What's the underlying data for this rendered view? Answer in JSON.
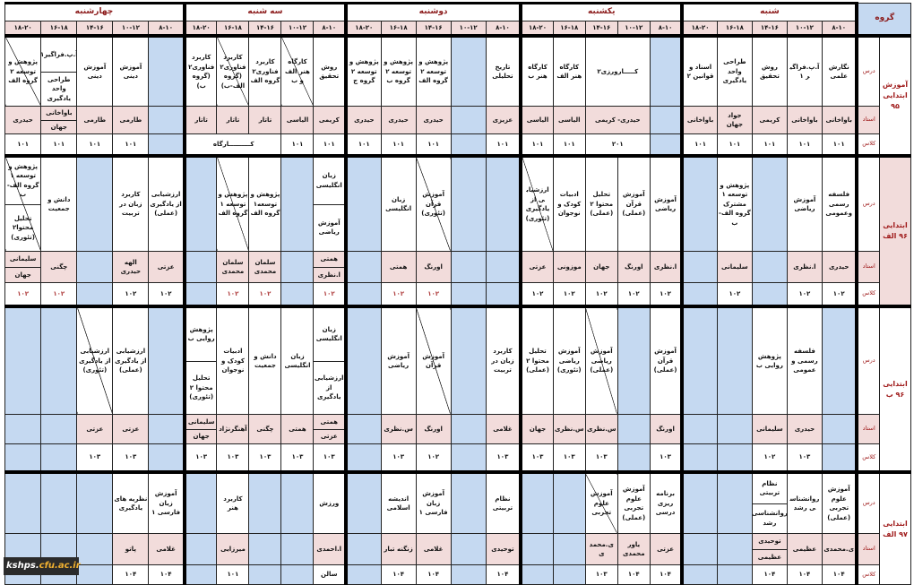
{
  "header": {
    "group_label": "گروه",
    "days": [
      "شنبه",
      "یکشنبه",
      "دوشنبه",
      "سه شنبه",
      "چهارشنبه"
    ],
    "times": [
      "۸-۱۰",
      "۱۰-۱۲",
      "۱۴-۱۶",
      "۱۶-۱۸",
      "۱۸-۲۰"
    ]
  },
  "row_labels": {
    "course": "درس",
    "teacher": "استاد",
    "room": "کلاس"
  },
  "colors": {
    "empty": "#c5d9f1",
    "teacher_bg": "#f2dcdb",
    "label_red": "#a01c1c"
  },
  "groups": [
    {
      "label": "آموزش ابتدایی ۹۵",
      "days": [
        {
          "slots": [
            {
              "c": "نگارش علمی",
              "t": "باواخانی",
              "r": "۱۰۱"
            },
            {
              "c": "آ.پ.فراگیر ۱",
              "t": "باواخانی",
              "r": "۱۰۱"
            },
            {
              "c": "روش تحقیق",
              "t": "کریمی",
              "r": "۱۰۱"
            },
            {
              "c": "طراحی واحد یادگیری",
              "t": "جواد جهان",
              "r": "۱۰۱"
            },
            {
              "c": "اسناد و قوانین ۲",
              "t": "باواخانی",
              "r": "۱۰۱"
            }
          ]
        },
        {
          "slots": [
            {
              "empty": true
            },
            {
              "c": "کـــــارورزی۲",
              "t": "حیدری- کریمی",
              "r": "۲۰۱",
              "span": 2
            },
            {
              "c": "کارگاه هنر الف",
              "t": "الیاسی",
              "r": "۱۰۱"
            },
            {
              "c": "کارگاه هنر ب",
              "t": "الیاسی",
              "r": "۱۰۱"
            }
          ]
        },
        {
          "slots": [
            {
              "c": "تاریخ تحلیلی",
              "t": "عزیزی",
              "r": "۱۰۱"
            },
            {
              "empty": true
            },
            {
              "c": "پژوهش و توسعه ۲ گروه الف",
              "t": "حیدری",
              "r": "۱۰۱"
            },
            {
              "c": "پژوهش و توسعه ۲ گروه ب",
              "t": "حیدری",
              "r": "۱۰۱"
            },
            {
              "c": "پژوهش و توسعه ۲ گروه ج",
              "t": "حیدری",
              "r": "۱۰۱"
            }
          ]
        },
        {
          "slots": [
            {
              "c": "روش تحقیق",
              "t": "کریمی",
              "r": "۱۰۱"
            },
            {
              "c": "کارگاه هنر الف و ب",
              "t": "الیاسی",
              "r": "۱۰۱",
              "diag": true
            },
            {
              "c": "کاربرد فناوری۲ گروه الف",
              "t": "تاتار",
              "r": "کــــــــــارگاه",
              "rspan": 3
            },
            {
              "c": "کاربرد فناوری۲ (گروه الف-ب)",
              "t": "تاتار",
              "diag": true,
              "rskip": true
            },
            {
              "c": "کاربرد فناوری۲ (گروه ب)",
              "t": "تاتار",
              "rskip": true
            }
          ]
        },
        {
          "slots": [
            {
              "empty": true
            },
            {
              "c": "آموزش دینی",
              "t": "طارمی",
              "r": "۱۰۱"
            },
            {
              "c": "آموزش دینی",
              "t": "طارمی",
              "r": "۱۰۱"
            },
            {
              "c": "آ.پ.فراگیر۱",
              "c2": "طراحی واحد یادگیری",
              "t": "باواخانی",
              "t2": "جهان",
              "r": "۱۰۱"
            },
            {
              "c": "پژوهش و توسعه ۲ گروه الف",
              "t": "حیدری",
              "r": "۱۰۱",
              "diag": true
            }
          ]
        }
      ]
    },
    {
      "label": "ابتدایی ۹۶ الف",
      "days": [
        {
          "slots": [
            {
              "c": "فلسفه رسمی وعمومی",
              "t": "حیدری",
              "r": "۱۰۲"
            },
            {
              "c": "آموزش ریاضی",
              "t": "ا.نظری",
              "r": "۱۰۲"
            },
            {
              "empty": true
            },
            {
              "c": "پژوهش و توسعه ۱ مشترک گروه الف- ب",
              "t": "سلیمانی",
              "r": "۱۰۲"
            },
            {
              "empty": true
            }
          ]
        },
        {
          "slots": [
            {
              "c": "آموزش ریاضی",
              "t": "ا.نظری",
              "r": "۱۰۲"
            },
            {
              "c": "آموزش قرآن (عملی)",
              "t": "اورنگ",
              "r": "۱۰۲"
            },
            {
              "c": "تحلیل محتوا ۲ (عملی)",
              "t": "جهان",
              "r": "۱۰۲"
            },
            {
              "c": "ادبیات کودک و نوجوان",
              "t": "موزونی",
              "r": "۱۰۲"
            },
            {
              "c": "ارزشیابی از یادگیری (تئوری)",
              "t": "عزتی",
              "r": "۱۰۲",
              "diag": true
            }
          ]
        },
        {
          "slots": [
            {
              "empty": true
            },
            {
              "empty": true
            },
            {
              "c": "آموزش قرآن (تئوری)",
              "t": "اورنگ",
              "r": "۱۰۲",
              "diag": true,
              "red": true
            },
            {
              "c": "زبان انگلیسی",
              "t": "همتی",
              "r": "۱۰۲",
              "red": true
            },
            {
              "empty": true
            }
          ]
        },
        {
          "slots": [
            {
              "c": "زبان انگلیسی",
              "c2": "آموزش ریاضی",
              "t": "همتی",
              "t2": "ا.نظری",
              "r": "۱۰۲",
              "red": true
            },
            {
              "empty": true
            },
            {
              "c": "پژوهش و توسعه۱ گروه الف",
              "t": "سلمان محمدی",
              "r": "۱۰۲",
              "red": true
            },
            {
              "c": "پژوهش و توسعه ۱ گروه الف",
              "t": "سلمان محمدی",
              "r": "۱۰۲",
              "diag": true,
              "red": true
            },
            {
              "empty": true
            }
          ]
        },
        {
          "slots": [
            {
              "c": "ارزشیابی از یادگیری (عملی)",
              "t": "عزتی",
              "r": "۱۰۲"
            },
            {
              "c": "کاربرد زبان در تربیت",
              "t": "الهه حیدری",
              "r": "۱۰۲"
            },
            {
              "empty": true
            },
            {
              "c": "دانش و جمعیت",
              "t": "چگنی",
              "r": "۱۰۲",
              "red": true
            },
            {
              "c": "پژوهش و توسعه ۱ گروه الف- ب",
              "c2": "تحلیل محتوا۲ (تئوری)",
              "t": "سلیمانی",
              "t2": "جهان",
              "r": "۱۰۲",
              "diag": true,
              "red": true
            }
          ]
        }
      ]
    },
    {
      "label": "ابتدایی ۹۶ ب",
      "days": [
        {
          "slots": [
            {
              "empty": true
            },
            {
              "c": "فلسفه رسمی و عمومی",
              "t": "حیدری",
              "r": "۱۰۳"
            },
            {
              "c": "پژوهش روایی ب",
              "t": "سلیمانی",
              "r": "۱۰۲"
            },
            {
              "empty": true
            },
            {
              "empty": true
            }
          ]
        },
        {
          "slots": [
            {
              "c": "آموزش قرآن (عملی)",
              "t": "اورنگ",
              "r": "۱۰۳"
            },
            {
              "empty": true
            },
            {
              "c": "آموزش ریاضی (عملی)",
              "t": "س.نظری",
              "r": "۱۰۳",
              "diag": true
            },
            {
              "c": "آموزش ریاضی (تئوری)",
              "t": "س.نظری",
              "r": "۱۰۳"
            },
            {
              "c": "تحلیل محتوا ۲ (عملی)",
              "t": "جهان",
              "r": "۱۰۳"
            }
          ]
        },
        {
          "slots": [
            {
              "c": "کاربرد زبان در تربیت",
              "t": "غلامی",
              "r": "۱۰۳"
            },
            {
              "empty": true
            },
            {
              "c": "آموزش قرآن",
              "t": "اورنگ",
              "r": "۱۰۲",
              "diag": true
            },
            {
              "c": "آموزش ریاضی",
              "t": "س.نظری",
              "r": "۱۰۳"
            },
            {
              "empty": true
            }
          ]
        },
        {
          "slots": [
            {
              "c": "زبان انگلیسی",
              "c2": "ارزشیابی از یادگیری",
              "t": "همتی",
              "t2": "عزتی",
              "r": "۱۰۳"
            },
            {
              "c": "زبان انگلیسی",
              "t": "همتی",
              "r": "۱۰۳"
            },
            {
              "c": "دانش و جمعیت",
              "t": "چگنی",
              "r": "۱۰۳"
            },
            {
              "c": "ادبیات کودک و نوجوان",
              "t": "آهنگرنژاد",
              "r": "۱۰۳"
            },
            {
              "c": "پژوهش روایی ب",
              "c2": "تحلیل محتوا ۲ (تئوری)",
              "t": "سلیمانی",
              "t2": "جهان",
              "r": "۱۰۳"
            }
          ]
        },
        {
          "slots": [
            {
              "empty": true
            },
            {
              "c": "ارزشیابی از یادگیری (عملی)",
              "t": "عزتی",
              "r": "۱۰۳"
            },
            {
              "c": "ارزشیابی از یادگیری (تئوری)",
              "t": "عزتی",
              "r": "۱۰۳",
              "diag": true
            },
            {
              "empty": true
            },
            {
              "empty": true
            }
          ]
        }
      ]
    },
    {
      "label": "ابتدایی ۹۷ الف",
      "days": [
        {
          "slots": [
            {
              "c": "آموزش علوم تجربی (عملی)",
              "t": "ی.محمدی",
              "r": "۱۰۴"
            },
            {
              "c": "روانشناسی رشد",
              "t": "عظیمی",
              "r": "۱۰۴"
            },
            {
              "c": "نظام تربیتی",
              "c2": "روانشناسی رشد",
              "t": "توحیدی",
              "t2": "عظیمی",
              "r": "۱۰۴"
            },
            {
              "empty": true
            },
            {
              "empty": true
            }
          ]
        },
        {
          "slots": [
            {
              "c": "برنامه ریزی درسی",
              "t": "عزتی",
              "r": "۱۰۴"
            },
            {
              "c": "آموزش علوم تجربی (عملی)",
              "t": "یاور محمدی",
              "r": "۱۰۴"
            },
            {
              "c": "آموزش علوم تجربی",
              "t": "ی.محمدی",
              "r": "۱۰۳",
              "diag": true
            },
            {
              "empty": true
            },
            {
              "empty": true
            }
          ]
        },
        {
          "slots": [
            {
              "c": "نظام تربیتی",
              "t": "توحیدی",
              "r": "۱۰۴"
            },
            {
              "empty": true
            },
            {
              "c": "آموزش زبان فارسی ۱",
              "t": "غلامی",
              "r": "۱۰۴"
            },
            {
              "c": "اندیشه اسلامی",
              "t": "زنگنه تبار",
              "r": "۱۰۴"
            },
            {
              "empty": true
            }
          ]
        },
        {
          "slots": [
            {
              "c": "ورزش",
              "t": "ا.احمدی",
              "r": "سالن"
            },
            {
              "empty": true
            },
            {
              "empty": true
            },
            {
              "c": "کاربرد هنر",
              "t": "میرزایی",
              "r": "۱۰۱"
            },
            {
              "empty": true
            }
          ]
        },
        {
          "slots": [
            {
              "c": "آموزش زبان فارسی ۱",
              "t": "غلامی",
              "r": "۱۰۴"
            },
            {
              "c": "نظریه های یادگیری",
              "t": "پاتو",
              "r": "۱۰۴"
            },
            {
              "empty": true
            },
            {
              "empty": true
            },
            {
              "empty": true
            }
          ]
        }
      ]
    }
  ],
  "watermark": {
    "part1": "kshps.",
    "part2": "cfu.ac.ir"
  }
}
